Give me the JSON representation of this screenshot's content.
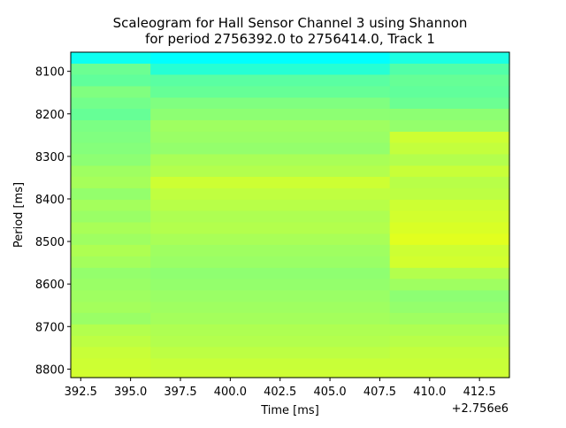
{
  "chart_data": {
    "type": "heatmap",
    "title_line1": "Scaleogram for Hall Sensor Channel 3 using Shannon",
    "title_line2": "for period 2756392.0 to 2756414.0, Track 1",
    "xlabel": "Time [ms]",
    "ylabel": "Period [ms]",
    "x_offset_label": "+2.756e6",
    "xlim": [
      2756392.0,
      2756414.0
    ],
    "ylim": [
      8820,
      8055
    ],
    "x_ticks": [
      {
        "value": 2756392.5,
        "label": "392.5"
      },
      {
        "value": 2756395.0,
        "label": "395.0"
      },
      {
        "value": 2756397.5,
        "label": "397.5"
      },
      {
        "value": 2756400.0,
        "label": "400.0"
      },
      {
        "value": 2756402.5,
        "label": "402.5"
      },
      {
        "value": 2756405.0,
        "label": "405.0"
      },
      {
        "value": 2756407.5,
        "label": "407.5"
      },
      {
        "value": 2756410.0,
        "label": "410.0"
      },
      {
        "value": 2756412.5,
        "label": "412.5"
      }
    ],
    "y_ticks": [
      {
        "value": 8100,
        "label": "8100"
      },
      {
        "value": 8200,
        "label": "8200"
      },
      {
        "value": 8300,
        "label": "8300"
      },
      {
        "value": 8400,
        "label": "8400"
      },
      {
        "value": 8500,
        "label": "8500"
      },
      {
        "value": 8600,
        "label": "8600"
      },
      {
        "value": 8700,
        "label": "8700"
      },
      {
        "value": 8800,
        "label": "8800"
      }
    ],
    "x_edges": [
      2756392.0,
      2756396.0,
      2756408.0,
      2756414.0
    ],
    "y_edges": [
      8055,
      8082,
      8108,
      8135,
      8162,
      8188,
      8215,
      8242,
      8268,
      8295,
      8322,
      8348,
      8375,
      8402,
      8428,
      8455,
      8482,
      8508,
      8535,
      8562,
      8588,
      8615,
      8642,
      8668,
      8695,
      8722,
      8748,
      8775,
      8802,
      8820
    ],
    "colormap": [
      "#00ffff",
      "#40ffb8",
      "#80ff80",
      "#c0ff40",
      "#ffff00"
    ],
    "value_range": [
      0,
      1
    ],
    "z": [
      [
        0.05,
        0.0,
        0.1
      ],
      [
        0.42,
        0.15,
        0.32
      ],
      [
        0.38,
        0.35,
        0.4
      ],
      [
        0.5,
        0.4,
        0.38
      ],
      [
        0.45,
        0.5,
        0.42
      ],
      [
        0.4,
        0.55,
        0.55
      ],
      [
        0.48,
        0.62,
        0.58
      ],
      [
        0.5,
        0.6,
        0.8
      ],
      [
        0.52,
        0.58,
        0.76
      ],
      [
        0.55,
        0.66,
        0.7
      ],
      [
        0.62,
        0.7,
        0.78
      ],
      [
        0.65,
        0.8,
        0.72
      ],
      [
        0.58,
        0.75,
        0.74
      ],
      [
        0.64,
        0.72,
        0.8
      ],
      [
        0.6,
        0.68,
        0.82
      ],
      [
        0.66,
        0.7,
        0.85
      ],
      [
        0.62,
        0.66,
        0.88
      ],
      [
        0.68,
        0.62,
        0.8
      ],
      [
        0.64,
        0.6,
        0.82
      ],
      [
        0.58,
        0.56,
        0.7
      ],
      [
        0.6,
        0.58,
        0.62
      ],
      [
        0.62,
        0.6,
        0.55
      ],
      [
        0.64,
        0.62,
        0.58
      ],
      [
        0.6,
        0.64,
        0.62
      ],
      [
        0.7,
        0.68,
        0.68
      ],
      [
        0.74,
        0.7,
        0.72
      ],
      [
        0.78,
        0.74,
        0.76
      ],
      [
        0.8,
        0.78,
        0.78
      ],
      [
        0.82,
        0.8,
        0.8
      ]
    ]
  }
}
